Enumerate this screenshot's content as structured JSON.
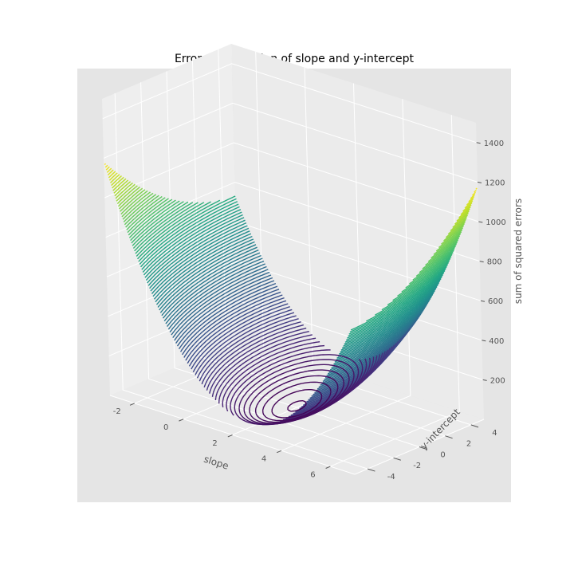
{
  "chart_data": {
    "type": "3d-contour",
    "title": "Error as a function of slope and y-intercept",
    "xlabel": "slope",
    "ylabel": "y-intercept",
    "zlabel": "sum of squared errors",
    "xlim": [
      -3,
      7
    ],
    "ylim": [
      -5,
      5
    ],
    "zlim": [
      0,
      1500
    ],
    "x_ticks": [
      "-2",
      "0",
      "2",
      "4",
      "6"
    ],
    "y_ticks": [
      "-4",
      "-2",
      "0",
      "2",
      "4"
    ],
    "z_ticks": [
      "200",
      "400",
      "600",
      "800",
      "1000",
      "1200",
      "1400"
    ],
    "minimum": {
      "slope": 2,
      "intercept": 0,
      "error": 5
    },
    "contour_levels": 100,
    "colormap": "viridis",
    "grid": true,
    "style": "ggplot"
  }
}
